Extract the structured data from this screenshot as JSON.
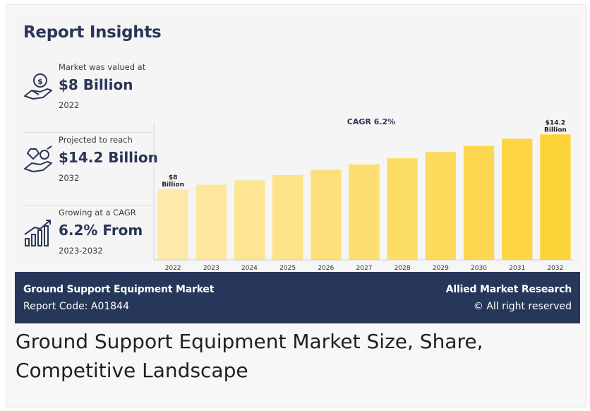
{
  "card": {
    "title": "Report Insights",
    "stats": [
      {
        "label": "Market was valued at",
        "value": "$8 Billion",
        "sub": "2022",
        "icon": "money-hand-icon"
      },
      {
        "label": "Projected to reach",
        "value": "$14.2 Billion",
        "sub": "2032",
        "icon": "diamond-coin-hand-icon"
      },
      {
        "label": "Growing at a CAGR",
        "value": "6.2% From",
        "sub": "2023-2032",
        "icon": "bar-growth-icon"
      }
    ],
    "footer": {
      "left_title": "Ground Support Equipment Market",
      "left_sub": "Report Code: A01844",
      "right_title": "Allied Market Research",
      "right_sub": "© All right reserved"
    }
  },
  "caption": "Ground Support Equipment Market Size, Share, Competitive Landscape",
  "colors": {
    "navy": "#263759",
    "title": "#2a3558",
    "bar_light": "#fde9a8",
    "bar_dark": "#fdd33a"
  },
  "chart_data": {
    "type": "bar",
    "title": "CAGR 6.2%",
    "categories": [
      "2022",
      "2023",
      "2024",
      "2025",
      "2026",
      "2027",
      "2028",
      "2029",
      "2030",
      "2031",
      "2032"
    ],
    "values": [
      8.0,
      8.5,
      9.0,
      9.6,
      10.2,
      10.8,
      11.5,
      12.2,
      12.9,
      13.7,
      14.2
    ],
    "annotations": [
      {
        "category": "2022",
        "text": [
          "$8",
          "Billion"
        ]
      },
      {
        "category": "2032",
        "text": [
          "$14.2",
          "Billion"
        ]
      }
    ],
    "ylim": [
      0,
      15.5
    ],
    "grid": false,
    "legend": "none"
  }
}
